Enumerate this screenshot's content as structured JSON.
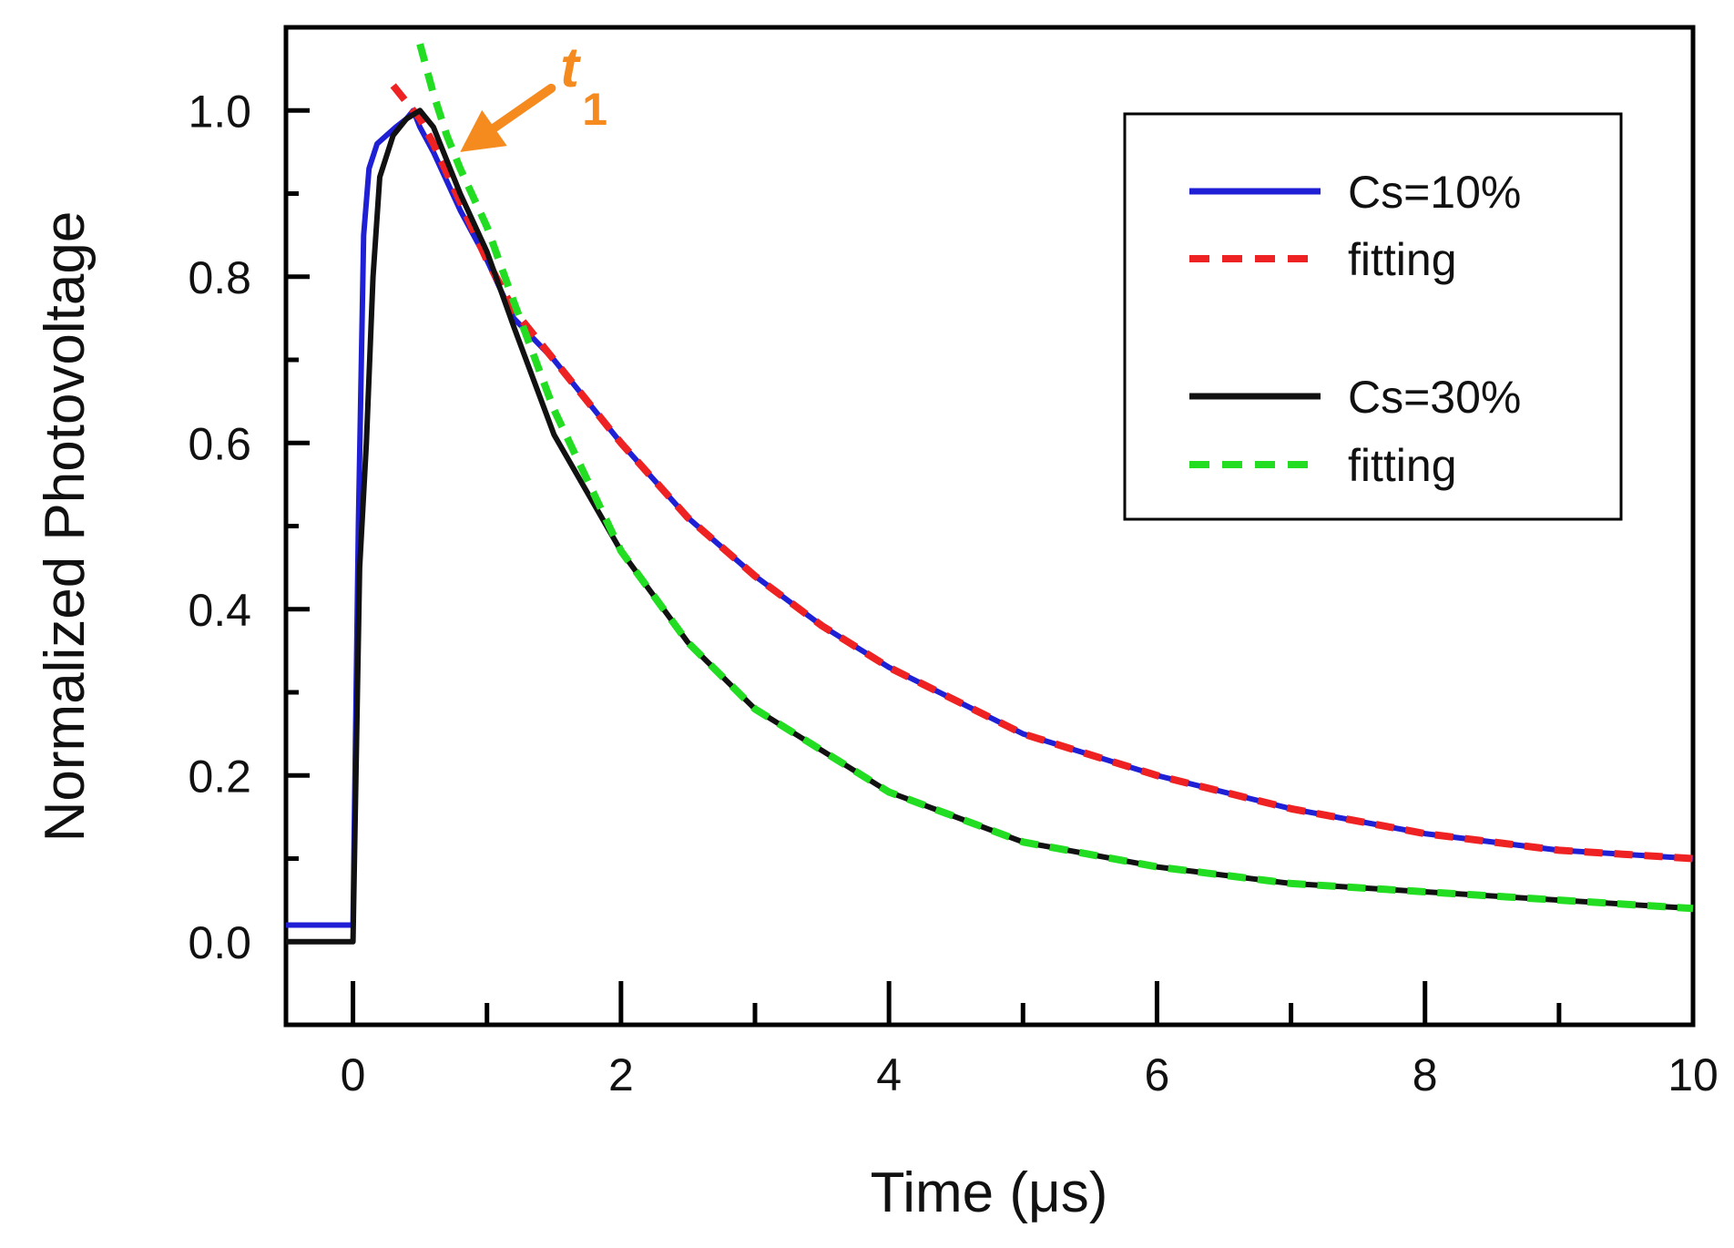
{
  "chart_data": {
    "type": "line",
    "title": "",
    "xlabel": "Time (μs)",
    "ylabel": "Normalized Photovoltage",
    "xlim": [
      -0.5,
      10
    ],
    "ylim": [
      -0.1,
      1.1
    ],
    "x_ticks": [
      0,
      2,
      4,
      6,
      8,
      10
    ],
    "x_tick_labels": [
      "0",
      "2",
      "4",
      "6",
      "8",
      "10"
    ],
    "y_ticks": [
      0.0,
      0.2,
      0.4,
      0.6,
      0.8,
      1.0
    ],
    "y_tick_labels": [
      "0.0",
      "0.2",
      "0.4",
      "0.6",
      "0.8",
      "1.0"
    ],
    "grid": false,
    "legend_position": "top-right",
    "series": [
      {
        "name": "Cs=10%",
        "style": "solid",
        "color": "#1f1fd6",
        "x": [
          -0.5,
          -0.3,
          -0.1,
          0.0,
          0.04,
          0.08,
          0.12,
          0.18,
          0.25,
          0.32,
          0.4,
          0.45,
          0.5,
          0.6,
          0.8,
          1.0,
          1.2,
          1.5,
          2.0,
          2.5,
          3.0,
          3.5,
          4.0,
          5.0,
          6.0,
          7.0,
          8.0,
          9.0,
          10.0
        ],
        "y": [
          0.02,
          0.02,
          0.02,
          0.02,
          0.5,
          0.85,
          0.93,
          0.96,
          0.97,
          0.98,
          0.99,
          1.0,
          0.98,
          0.95,
          0.88,
          0.82,
          0.75,
          0.7,
          0.6,
          0.51,
          0.44,
          0.38,
          0.33,
          0.25,
          0.2,
          0.16,
          0.13,
          0.11,
          0.1
        ]
      },
      {
        "name": "fitting",
        "style": "dashed",
        "color": "#ee2222",
        "x": [
          0.3,
          0.4,
          0.5,
          0.6,
          0.8,
          1.0,
          1.2,
          1.5,
          2.0,
          2.5,
          3.0,
          3.5,
          4.0,
          5.0,
          6.0,
          7.0,
          8.0,
          9.0,
          10.0
        ],
        "y": [
          1.03,
          1.01,
          0.99,
          0.96,
          0.89,
          0.82,
          0.76,
          0.7,
          0.6,
          0.51,
          0.44,
          0.38,
          0.33,
          0.25,
          0.2,
          0.16,
          0.13,
          0.11,
          0.1
        ]
      },
      {
        "name": "Cs=30%",
        "style": "solid",
        "color": "#111111",
        "x": [
          -0.5,
          -0.3,
          -0.1,
          0.0,
          0.05,
          0.1,
          0.15,
          0.2,
          0.3,
          0.4,
          0.5,
          0.6,
          0.8,
          1.0,
          1.2,
          1.5,
          2.0,
          2.5,
          3.0,
          3.5,
          4.0,
          5.0,
          6.0,
          7.0,
          8.0,
          9.0,
          10.0
        ],
        "y": [
          0.0,
          0.0,
          0.0,
          0.0,
          0.45,
          0.6,
          0.8,
          0.92,
          0.97,
          0.99,
          1.0,
          0.98,
          0.9,
          0.83,
          0.74,
          0.61,
          0.47,
          0.36,
          0.28,
          0.23,
          0.18,
          0.12,
          0.09,
          0.07,
          0.06,
          0.05,
          0.04
        ]
      },
      {
        "name": "fitting",
        "style": "dashed",
        "color": "#22dd22",
        "x": [
          0.5,
          0.6,
          0.7,
          0.8,
          1.0,
          1.2,
          1.5,
          2.0,
          2.5,
          3.0,
          3.5,
          4.0,
          5.0,
          6.0,
          7.0,
          8.0,
          9.0,
          10.0
        ],
        "y": [
          1.08,
          1.02,
          0.97,
          0.93,
          0.86,
          0.77,
          0.64,
          0.47,
          0.36,
          0.28,
          0.23,
          0.18,
          0.12,
          0.09,
          0.07,
          0.06,
          0.05,
          0.04
        ]
      }
    ],
    "annotations": [
      {
        "text": "t",
        "subscript": "1",
        "color": "#f58a1f",
        "x": 0.8,
        "y": 0.95
      }
    ]
  }
}
